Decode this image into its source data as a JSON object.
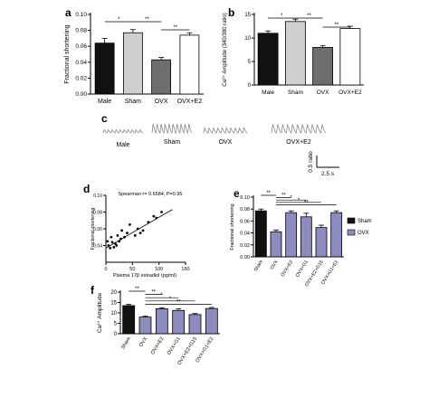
{
  "colors": {
    "black": "#111111",
    "light_gray": "#cfcfcf",
    "dark_gray": "#6e6e6e",
    "white": "#ffffff",
    "purple": "#8c8cbf",
    "trace": "#8a8a8a"
  },
  "chart_data": [
    {
      "panel": "a",
      "type": "bar",
      "categories": [
        "Male",
        "Sham",
        "OVX",
        "OVX+E2"
      ],
      "values": [
        0.064,
        0.077,
        0.043,
        0.074
      ],
      "errors": [
        0.006,
        0.004,
        0.003,
        0.003
      ],
      "fills": [
        "black",
        "light_gray",
        "dark_gray",
        "white"
      ],
      "ylabel": "Fractional shortening",
      "ylim": [
        0,
        0.1
      ],
      "yticks": [
        0,
        0.02,
        0.04,
        0.06,
        0.08,
        0.1
      ],
      "yticklabels": [
        "0.00",
        "0.02",
        "0.04",
        "0.06",
        "0.08",
        "0.10"
      ],
      "significance": [
        {
          "from": 0,
          "to": 1,
          "label": "*",
          "level": 0
        },
        {
          "from": 1,
          "to": 2,
          "label": "**",
          "level": 0
        },
        {
          "from": 2,
          "to": 3,
          "label": "**",
          "level": 1
        }
      ]
    },
    {
      "panel": "b",
      "type": "bar",
      "categories": [
        "Male",
        "Sham",
        "OVX",
        "OVX+E2"
      ],
      "values": [
        11,
        13.5,
        8,
        12
      ],
      "errors": [
        0.5,
        0.5,
        0.4,
        0.5
      ],
      "fills": [
        "black",
        "light_gray",
        "dark_gray",
        "white"
      ],
      "ylabel": "Ca²⁺ Amplitude (340/380 ratio)",
      "ylim": [
        0,
        15
      ],
      "yticks": [
        0,
        5,
        10,
        15
      ],
      "yticklabels": [
        "0",
        "5",
        "10",
        "15"
      ],
      "significance": [
        {
          "from": 0,
          "to": 1,
          "label": "*",
          "level": 0
        },
        {
          "from": 1,
          "to": 2,
          "label": "**",
          "level": 0
        },
        {
          "from": 2,
          "to": 3,
          "label": "**",
          "level": 1
        }
      ]
    },
    {
      "panel": "c",
      "type": "line",
      "traces": [
        {
          "label": "Male",
          "peaks": 10,
          "amplitude": 0.35
        },
        {
          "label": "Sham",
          "peaks": 10,
          "amplitude": 1.0
        },
        {
          "label": "OVX",
          "peaks": 10,
          "amplitude": 0.55
        },
        {
          "label": "OVX+E2",
          "peaks": 11,
          "amplitude": 0.95
        }
      ],
      "scale_bar": {
        "y_label": "0.5 ratio",
        "x_label": "2.5 s"
      }
    },
    {
      "panel": "d",
      "type": "scatter",
      "annotation": "Spearman r= 0.6584, P=0.95",
      "xlabel": "Plasma 17β estradiol (pg/ml)",
      "ylabel": "Fractional shortening",
      "xlim": [
        0,
        150
      ],
      "ylim": [
        0.02,
        0.1
      ],
      "xticks": [
        0,
        50,
        100,
        150
      ],
      "xticklabels": [
        "0",
        "50",
        "100",
        "150"
      ],
      "yticks": [
        0.04,
        0.06,
        0.08,
        0.1
      ],
      "yticklabels": [
        "0.04",
        "0.06",
        "0.08",
        "0.10"
      ],
      "x": [
        3,
        5,
        8,
        10,
        12,
        15,
        18,
        20,
        22,
        25,
        28,
        30,
        35,
        40,
        45,
        55,
        60,
        65,
        70,
        80,
        90,
        95,
        105
      ],
      "y": [
        0.045,
        0.04,
        0.037,
        0.05,
        0.044,
        0.038,
        0.042,
        0.04,
        0.052,
        0.045,
        0.048,
        0.058,
        0.05,
        0.055,
        0.065,
        0.052,
        0.06,
        0.055,
        0.058,
        0.068,
        0.075,
        0.073,
        0.08
      ],
      "fit": {
        "x": [
          0,
          125
        ],
        "y": [
          0.037,
          0.083
        ]
      }
    },
    {
      "panel": "e",
      "type": "bar",
      "categories": [
        "Sham",
        "OVX",
        "OVX+E2",
        "OVX+G1",
        "OVX+E2+G15",
        "OVX+G1+E2"
      ],
      "values": [
        0.077,
        0.042,
        0.074,
        0.067,
        0.049,
        0.074
      ],
      "errors": [
        0.003,
        0.003,
        0.003,
        0.006,
        0.004,
        0.003
      ],
      "fills": [
        "black",
        "purple",
        "purple",
        "purple",
        "purple",
        "purple"
      ],
      "ylabel": "Fractional shortening",
      "ylim": [
        0,
        0.1
      ],
      "yticks": [
        0,
        0.02,
        0.04,
        0.06,
        0.08,
        0.1
      ],
      "yticklabels": [
        "0.00",
        "0.02",
        "0.04",
        "0.06",
        "0.08",
        "0.10"
      ],
      "legend": [
        {
          "name": "Sham",
          "fill": "black"
        },
        {
          "name": "OVX",
          "fill": "purple"
        }
      ],
      "legend_position": "right",
      "significance": [
        {
          "from": 0,
          "to": 1,
          "label": "**",
          "level": 0
        },
        {
          "from": 1,
          "to": 2,
          "label": "**",
          "level": 1
        },
        {
          "from": 1,
          "to": 3,
          "label": "*",
          "level": 2
        },
        {
          "from": 1,
          "to": 4,
          "label": "*",
          "level": 3
        },
        {
          "from": 1,
          "to": 5,
          "label": "**",
          "level": 4
        }
      ]
    },
    {
      "panel": "f",
      "type": "bar",
      "categories": [
        "Sham",
        "OVX",
        "OVX+E2",
        "OVX+G1",
        "OVX+E2+G15",
        "OVX+G1+E2"
      ],
      "values": [
        13.5,
        8,
        12,
        11.2,
        9.2,
        12.1
      ],
      "errors": [
        0.6,
        0.4,
        0.5,
        0.7,
        0.5,
        0.5
      ],
      "fills": [
        "black",
        "purple",
        "purple",
        "purple",
        "purple",
        "purple"
      ],
      "ylabel": "Ca²⁺ Amplitude",
      "ylim": [
        0,
        20
      ],
      "yticks": [
        0,
        5,
        10,
        15,
        20
      ],
      "yticklabels": [
        "0",
        "5",
        "10",
        "15",
        "20"
      ],
      "significance": [
        {
          "from": 0,
          "to": 1,
          "label": "**",
          "level": 0
        },
        {
          "from": 1,
          "to": 2,
          "label": "**",
          "level": 1
        },
        {
          "from": 1,
          "to": 3,
          "label": "*",
          "level": 2
        },
        {
          "from": 1,
          "to": 4,
          "label": "*",
          "level": 3
        },
        {
          "from": 1,
          "to": 5,
          "label": "**",
          "level": 4
        }
      ]
    }
  ],
  "panel_letters": [
    "a",
    "b",
    "c",
    "d",
    "e",
    "f"
  ]
}
